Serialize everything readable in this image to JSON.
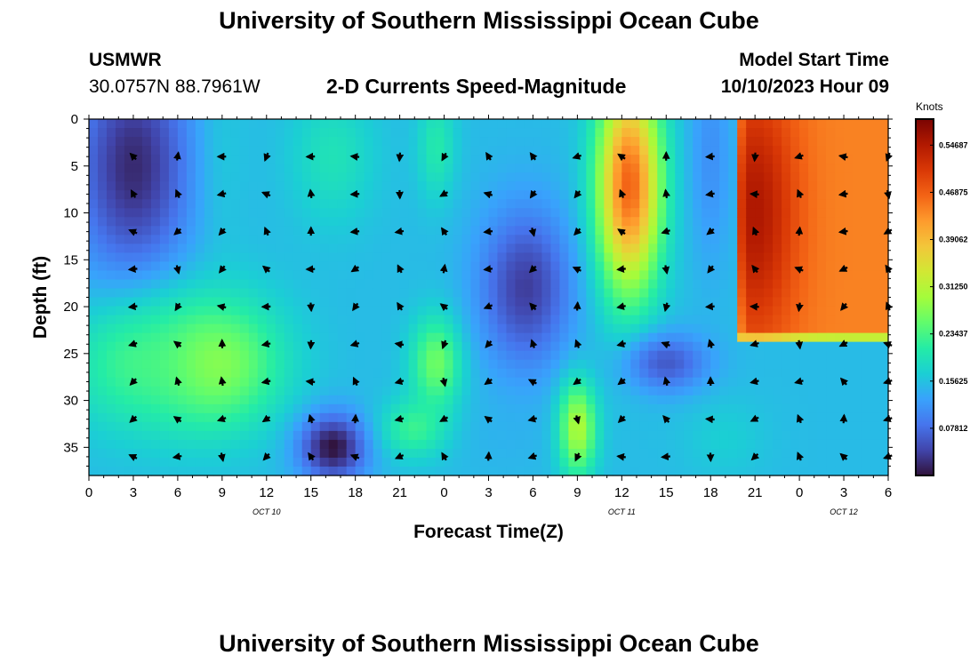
{
  "header": {
    "title": "University of Southern Mississippi Ocean Cube",
    "station": "USMWR",
    "coords": "30.0757N  88.7961W",
    "subtitle": "2-D Currents Speed-Magnitude",
    "model_start_label": "Model Start Time",
    "model_start_value": "10/10/2023 Hour 09"
  },
  "footer": {
    "title": "University of Southern Mississippi Ocean Cube"
  },
  "colors": {
    "arrow": "#000000",
    "axis": "#000000",
    "background": "#ffffff"
  },
  "chart_data": {
    "type": "heatmap",
    "title": "2-D Currents Speed-Magnitude",
    "xlabel": "Forecast Time(Z)",
    "ylabel": "Depth (ft)",
    "x_range": [
      0,
      54
    ],
    "y_range": [
      0,
      38
    ],
    "x_ticks": [
      0,
      3,
      6,
      9,
      12,
      15,
      18,
      21,
      24,
      27,
      30,
      33,
      36,
      39,
      42,
      45,
      48,
      51,
      54
    ],
    "x_tick_labels": [
      "0",
      "3",
      "6",
      "9",
      "12",
      "15",
      "18",
      "21",
      "0",
      "3",
      "6",
      "9",
      "12",
      "15",
      "18",
      "21",
      "0",
      "3",
      "6"
    ],
    "y_ticks": [
      0,
      5,
      10,
      15,
      20,
      25,
      30,
      35
    ],
    "y_tick_labels": [
      "0",
      "5",
      "10",
      "15",
      "20",
      "25",
      "30",
      "35"
    ],
    "date_labels": [
      {
        "x": 12,
        "label": "OCT 10"
      },
      {
        "x": 36,
        "label": "OCT 11"
      },
      {
        "x": 51,
        "label": "OCT 12"
      }
    ],
    "colorbar": {
      "title": "Knots",
      "min": 0,
      "max": 0.59,
      "ticks": [
        0.078125,
        0.15625,
        0.234375,
        0.3125,
        0.390625,
        0.46875,
        0.546875
      ],
      "tick_labels": [
        "0.07812",
        "0.15625",
        "0.23437",
        "0.31250",
        "0.39062",
        "0.46875",
        "0.54687"
      ],
      "palette": [
        "#30123b",
        "#4145ab",
        "#4675ed",
        "#39a2fc",
        "#1bcfd4",
        "#24eca6",
        "#61fc6c",
        "#a4fc3b",
        "#d1e834",
        "#f3c63a",
        "#fe9b2d",
        "#f36315",
        "#d93806",
        "#b11901",
        "#7a0402"
      ]
    },
    "speed_features": [
      {
        "x": 3,
        "y": 5,
        "sx": 2.8,
        "sy": 9,
        "v": 0.02,
        "w": 0.16
      },
      {
        "x": 8.5,
        "y": 26,
        "sx": 3.2,
        "sy": 5,
        "v": 0.29,
        "w": 0.15
      },
      {
        "x": 3,
        "y": 26,
        "sx": 3.2,
        "sy": 5,
        "v": 0.25,
        "w": 0.12
      },
      {
        "x": 9,
        "y": 4,
        "sx": 1.2,
        "sy": 9,
        "v": 0.19,
        "w": 0.06
      },
      {
        "x": 16.5,
        "y": 35,
        "sx": 1.6,
        "sy": 2.5,
        "v": 0.0,
        "w": 0.16
      },
      {
        "x": 16.5,
        "y": 4,
        "sx": 2,
        "sy": 5,
        "v": 0.24,
        "w": 0.08
      },
      {
        "x": 23.5,
        "y": 26,
        "sx": 1.2,
        "sy": 3.5,
        "v": 0.28,
        "w": 0.14
      },
      {
        "x": 23.5,
        "y": 3,
        "sx": 0.9,
        "sy": 4,
        "v": 0.25,
        "w": 0.09
      },
      {
        "x": 22,
        "y": 33,
        "sx": 1.6,
        "sy": 2.2,
        "v": 0.26,
        "w": 0.11
      },
      {
        "x": 29.5,
        "y": 18,
        "sx": 2.2,
        "sy": 6,
        "v": 0.02,
        "w": 0.14
      },
      {
        "x": 33,
        "y": 33,
        "sx": 0.9,
        "sy": 3.5,
        "v": 0.31,
        "w": 0.16
      },
      {
        "x": 36.5,
        "y": 7,
        "sx": 1.5,
        "sy": 8,
        "v": 0.36,
        "w": 0.24
      },
      {
        "x": 39,
        "y": 26,
        "sx": 2,
        "sy": 2.2,
        "v": 0.03,
        "w": 0.12
      },
      {
        "x": 42,
        "y": 4,
        "sx": 1,
        "sy": 8,
        "v": 0.07,
        "w": 0.08
      },
      {
        "x": 43,
        "y": 34,
        "sx": 2,
        "sy": 3,
        "v": 0.21,
        "w": 0.05
      },
      {
        "x": 28,
        "y": 34,
        "sx": 2.5,
        "sy": 3,
        "v": 0.13,
        "w": 0.05
      }
    ],
    "hot_region": {
      "x0": 43.6,
      "x1": 54,
      "y0": 0,
      "y1": 24,
      "v": 0.44
    },
    "hot_region_core": {
      "x": 45,
      "y": 10,
      "sx": 2,
      "sy": 10,
      "v": 0.55
    },
    "arrow_x": [
      3,
      6,
      9,
      12,
      15,
      18,
      21,
      24,
      27,
      30,
      33,
      36,
      39,
      42,
      45,
      48,
      51,
      54
    ],
    "arrow_y": [
      4,
      8,
      12,
      16,
      20,
      24,
      28,
      32,
      36
    ]
  }
}
